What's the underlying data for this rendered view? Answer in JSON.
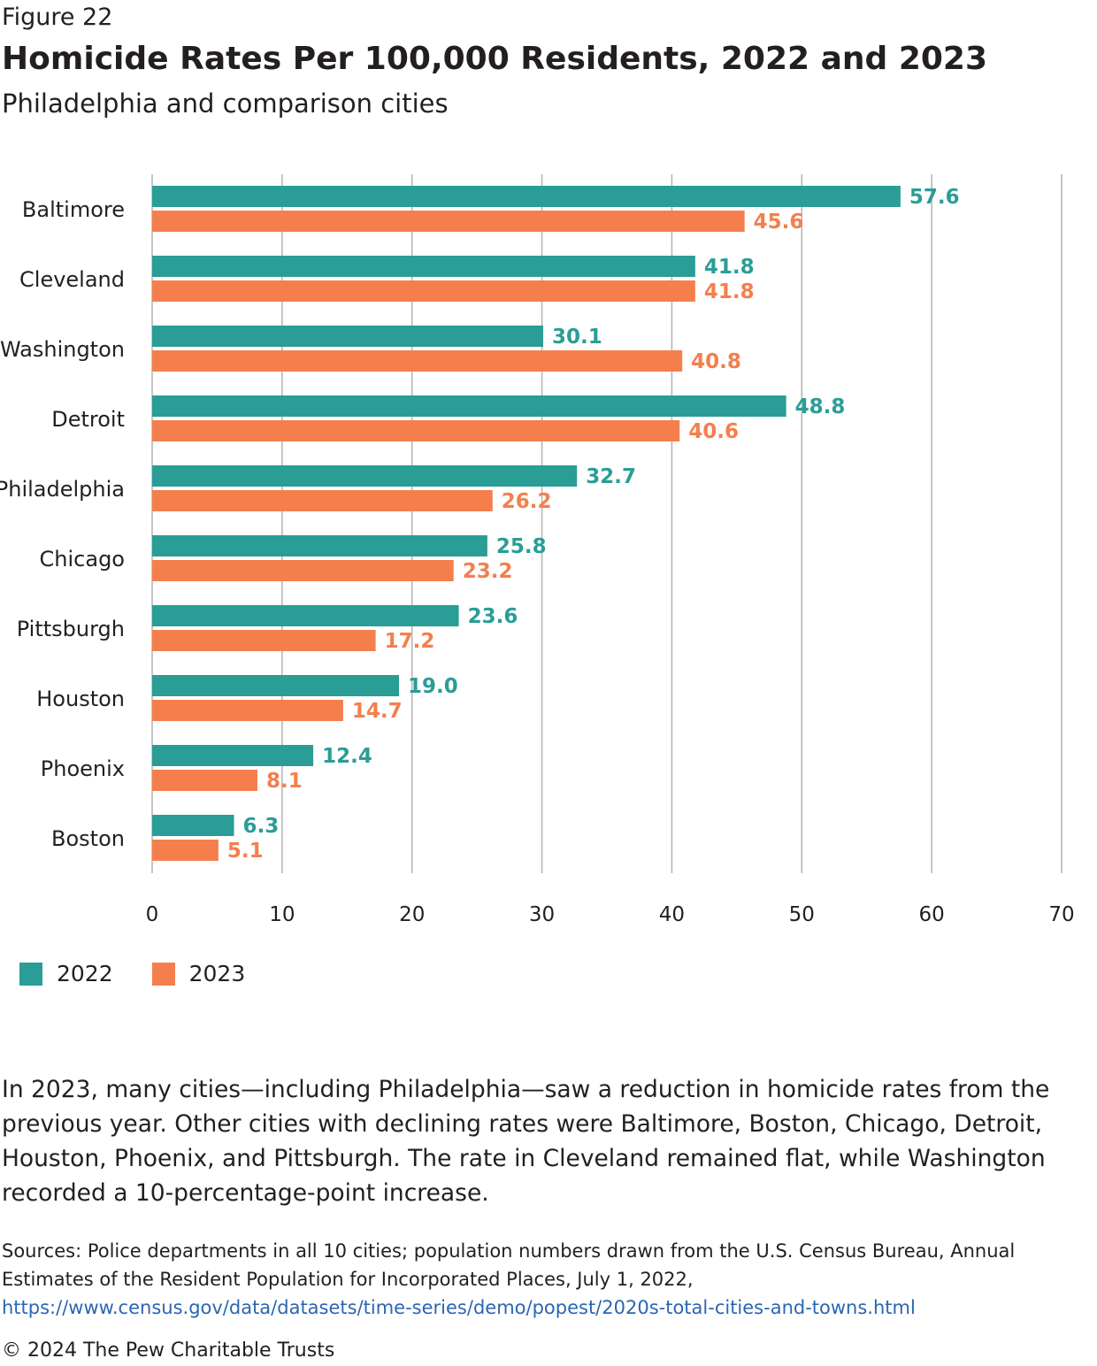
{
  "figure_label": "Figure 22",
  "chart_data": {
    "type": "bar",
    "orientation": "horizontal",
    "title": "Homicide Rates Per 100,000 Residents, 2022 and 2023",
    "subtitle": "Philadelphia and comparison cities",
    "categories": [
      "Baltimore",
      "Cleveland",
      "Washington",
      "Detroit",
      "Philadelphia",
      "Chicago",
      "Pittsburgh",
      "Houston",
      "Phoenix",
      "Boston"
    ],
    "series": [
      {
        "name": "2022",
        "color": "#2a9d96",
        "values": [
          57.6,
          41.8,
          30.1,
          48.8,
          32.7,
          25.8,
          23.6,
          19.0,
          12.4,
          6.3
        ]
      },
      {
        "name": "2023",
        "color": "#f47f4c",
        "values": [
          45.6,
          41.8,
          40.8,
          40.6,
          26.2,
          23.2,
          17.2,
          14.7,
          8.1,
          5.1
        ]
      }
    ],
    "xlim": [
      0,
      70
    ],
    "xticks": [
      0,
      10,
      20,
      30,
      40,
      50,
      60,
      70
    ],
    "grid": true,
    "legend_placement": "bottom-left"
  },
  "summary": "In 2023, many cities—including Philadelphia—saw a reduction in homicide rates from the previous year. Other cities with declining rates were Baltimore, Boston, Chicago, Detroit, Houston, Phoenix, and Pittsburgh. The rate in Cleveland remained flat, while Washington recorded a 10-percentage-point increase.",
  "sources": {
    "text": "Sources: Police departments in all 10 cities; population numbers drawn from the U.S. Census Bureau, Annual Estimates of the Resident Population for Incorporated Places, July 1, 2022,",
    "url": "https://www.census.gov/data/datasets/time-series/demo/popest/2020s-total-cities-and-towns.html"
  },
  "copyright": "© 2024 The Pew Charitable Trusts"
}
